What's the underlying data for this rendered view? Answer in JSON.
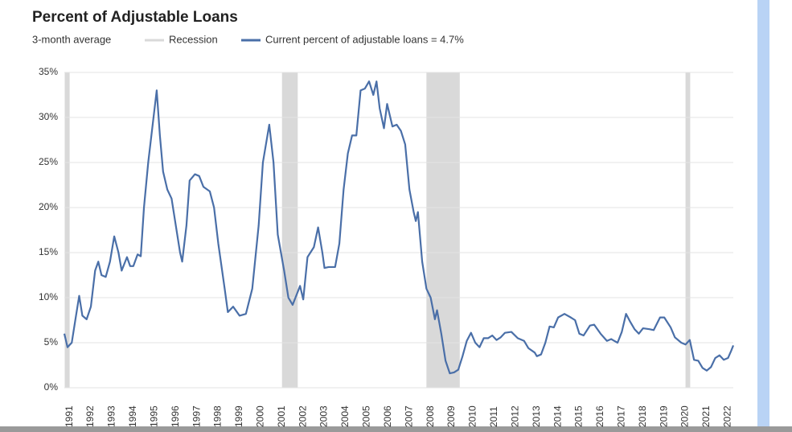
{
  "chart_data": {
    "type": "line",
    "title": "Percent of Adjustable Loans",
    "subtitle": "3-month average",
    "recessions": {
      "name": "Recession",
      "color": "#d9d9d9",
      "periods": [
        [
          1990.77,
          1991.0
        ],
        [
          2001.0,
          2001.74
        ],
        [
          2007.8,
          2009.37
        ],
        [
          2020.0,
          2020.22
        ]
      ]
    },
    "x": [
      1990.75,
      1990.9,
      1991.1,
      1991.3,
      1991.45,
      1991.6,
      1991.8,
      1992.0,
      1992.2,
      1992.35,
      1992.5,
      1992.7,
      1992.9,
      1993.1,
      1993.3,
      1993.45,
      1993.7,
      1993.85,
      1994.0,
      1994.2,
      1994.35,
      1994.5,
      1994.7,
      1994.85,
      1995.0,
      1995.1,
      1995.25,
      1995.4,
      1995.6,
      1995.8,
      1996.0,
      1996.2,
      1996.3,
      1996.5,
      1996.65,
      1996.9,
      1997.1,
      1997.3,
      1997.6,
      1997.8,
      1998.0,
      1998.3,
      1998.45,
      1998.7,
      1999.0,
      1999.3,
      1999.6,
      1999.9,
      2000.1,
      2000.4,
      2000.6,
      2000.8,
      2001.1,
      2001.3,
      2001.5,
      2001.7,
      2001.85,
      2002.0,
      2002.2,
      2002.5,
      2002.7,
      2002.9,
      2003.0,
      2003.2,
      2003.5,
      2003.7,
      2003.9,
      2004.1,
      2004.3,
      2004.5,
      2004.7,
      2004.9,
      2005.1,
      2005.3,
      2005.45,
      2005.6,
      2005.8,
      2005.95,
      2006.2,
      2006.4,
      2006.6,
      2006.8,
      2007.0,
      2007.2,
      2007.3,
      2007.4,
      2007.6,
      2007.8,
      2008.0,
      2008.2,
      2008.3,
      2008.5,
      2008.7,
      2008.9,
      2009.1,
      2009.3,
      2009.5,
      2009.7,
      2009.9,
      2010.1,
      2010.3,
      2010.5,
      2010.7,
      2010.9,
      2011.1,
      2011.3,
      2011.5,
      2011.8,
      2012.1,
      2012.4,
      2012.6,
      2012.9,
      2013.0,
      2013.2,
      2013.4,
      2013.6,
      2013.8,
      2014.0,
      2014.3,
      2014.6,
      2014.8,
      2015.0,
      2015.2,
      2015.5,
      2015.7,
      2016.0,
      2016.3,
      2016.5,
      2016.8,
      2017.0,
      2017.2,
      2017.4,
      2017.6,
      2017.8,
      2018.0,
      2018.3,
      2018.5,
      2018.8,
      2019.0,
      2019.3,
      2019.5,
      2019.8,
      2020.0,
      2020.2,
      2020.4,
      2020.6,
      2020.8,
      2021.0,
      2021.2,
      2021.4,
      2021.6,
      2021.8,
      2022.0,
      2022.15,
      2022.25
    ],
    "series": [
      {
        "name": "Current percent of adjustable loans = 4.7%",
        "color": "#4a6fa8",
        "values": [
          6.0,
          4.5,
          5,
          8,
          10.2,
          8,
          7.6,
          9,
          13,
          14,
          12.5,
          12.3,
          14,
          16.8,
          15,
          13,
          14.5,
          13.5,
          13.5,
          14.8,
          14.6,
          20,
          25,
          28,
          31,
          33,
          28,
          24,
          22,
          21,
          18,
          15,
          14,
          18,
          23,
          23.7,
          23.5,
          22.3,
          21.8,
          20,
          16,
          11,
          8.4,
          9,
          8,
          8.2,
          11,
          18,
          25,
          29.2,
          25,
          17,
          13,
          10,
          9.2,
          10.4,
          11.3,
          9.8,
          14.5,
          15.6,
          17.8,
          15,
          13.3,
          13.4,
          13.4,
          16,
          22,
          26,
          28,
          28,
          33,
          33.2,
          34,
          32.5,
          34,
          31,
          28.8,
          31.5,
          29,
          29.2,
          28.5,
          27,
          22,
          19.5,
          18.5,
          19.5,
          14,
          11,
          10,
          7.6,
          8.6,
          6,
          3,
          1.6,
          1.7,
          2,
          3.5,
          5.2,
          6.1,
          5,
          4.5,
          5.5,
          5.5,
          5.8,
          5.3,
          5.6,
          6.1,
          6.2,
          5.5,
          5.2,
          4.4,
          3.9,
          3.5,
          3.7,
          5,
          6.8,
          6.7,
          7.8,
          8.2,
          7.8,
          7.5,
          6,
          5.8,
          6.9,
          7,
          6,
          5.2,
          5.4,
          5.0,
          6.2,
          8.2,
          7.3,
          6.5,
          6.0,
          6.6,
          6.5,
          6.4,
          7.8,
          7.8,
          6.7,
          5.6,
          5.0,
          4.8,
          5.3,
          3.1,
          3.0,
          2.2,
          1.9,
          2.3,
          3.3,
          3.6,
          3.1,
          3.3,
          4.1,
          4.7
        ]
      }
    ],
    "xlim": [
      1990.75,
      2022.25
    ],
    "xticks": [
      1991,
      1992,
      1993,
      1994,
      1995,
      1996,
      1997,
      1998,
      1999,
      2000,
      2001,
      2002,
      2003,
      2004,
      2005,
      2006,
      2007,
      2008,
      2009,
      2010,
      2011,
      2012,
      2013,
      2014,
      2015,
      2016,
      2017,
      2018,
      2019,
      2020,
      2021,
      2022
    ],
    "ylim": [
      0,
      35
    ],
    "yticks": [
      {
        "value": 0,
        "label": "0%"
      },
      {
        "value": 5,
        "label": "5%"
      },
      {
        "value": 10,
        "label": "10%"
      },
      {
        "value": 15,
        "label": "15%"
      },
      {
        "value": 20,
        "label": "20%"
      },
      {
        "value": 25,
        "label": "25%"
      },
      {
        "value": 30,
        "label": "30%"
      },
      {
        "value": 35,
        "label": "35%"
      }
    ],
    "grid": true
  }
}
